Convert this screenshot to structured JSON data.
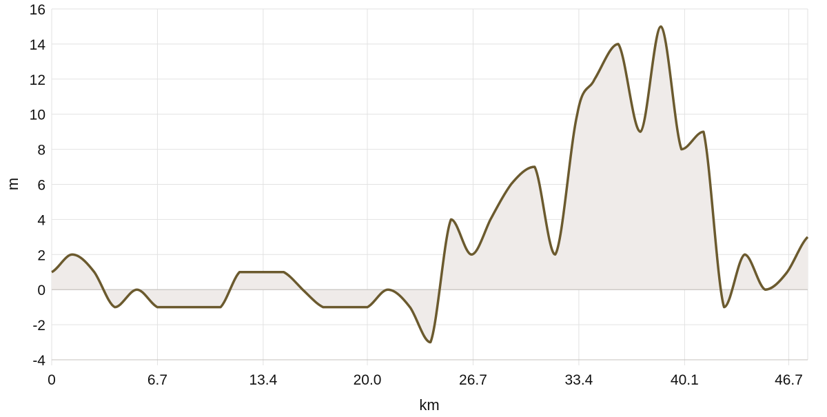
{
  "chart_data": {
    "type": "area",
    "title": "",
    "xlabel": "km",
    "ylabel": "m",
    "xlim": [
      0,
      47.9
    ],
    "ylim": [
      -4,
      16
    ],
    "grid": true,
    "legend": "none",
    "x_ticks": [
      "0",
      "6.7",
      "13.4",
      "20.0",
      "26.7",
      "33.4",
      "40.1",
      "46.7"
    ],
    "y_ticks": [
      "-4",
      "-2",
      "0",
      "2",
      "4",
      "6",
      "8",
      "10",
      "12",
      "14",
      "16"
    ],
    "colors": {
      "line": "#6b5a2e",
      "fill": "#efebe9",
      "grid": "#e2e2e2",
      "zero_line": "#c4c0bc"
    },
    "x": [
      0,
      1.3,
      2.7,
      4.0,
      5.4,
      6.7,
      8.0,
      9.4,
      10.7,
      11.9,
      13.4,
      14.7,
      15.9,
      17.2,
      18.6,
      20.0,
      21.3,
      22.7,
      24.0,
      25.3,
      26.6,
      27.8,
      29.1,
      30.6,
      31.9,
      33.3,
      34.4,
      35.9,
      37.3,
      38.6,
      39.9,
      41.3,
      42.6,
      43.9,
      45.2,
      46.6,
      47.9
    ],
    "y": [
      1,
      2,
      1,
      -1,
      0,
      -1,
      -1,
      -1,
      -1,
      1,
      1,
      1,
      0,
      -1,
      -1,
      -1,
      0,
      -1,
      -3,
      4,
      2,
      4,
      6,
      7,
      2,
      10,
      12,
      14,
      9,
      15,
      8,
      9,
      -1,
      2,
      0,
      1,
      3
    ]
  }
}
